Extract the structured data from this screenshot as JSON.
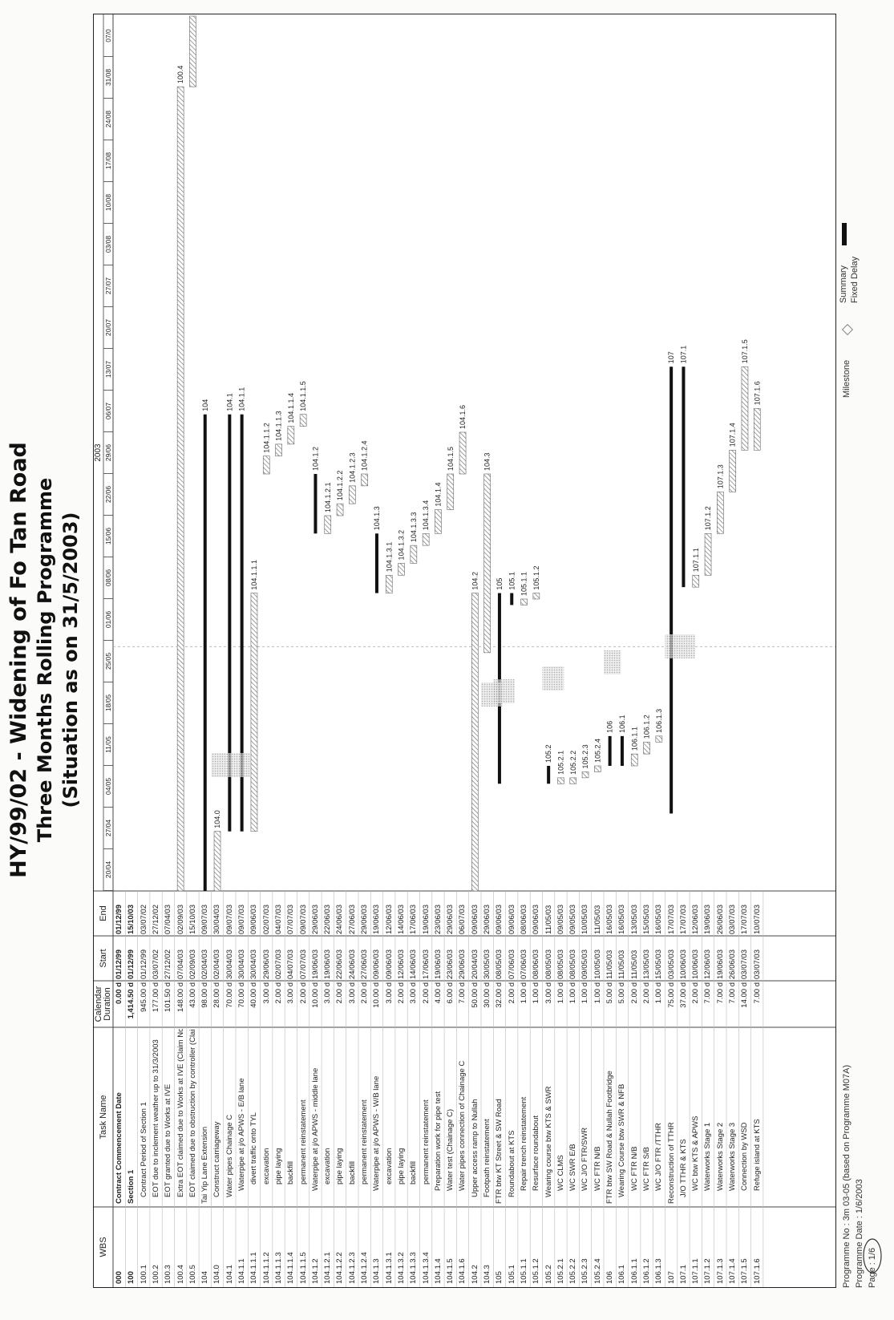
{
  "title": {
    "line1": "HY/99/02 - Widening of Fo Tan Road",
    "line2": "Three Months Rolling Programme",
    "line3": "(Situation as on 31/5/2003)"
  },
  "table": {
    "headers": {
      "wbs": "WBS",
      "task": "Task Name",
      "duration": "Calendar Duration",
      "start": "Start",
      "end": "End"
    },
    "rows": [
      {
        "wbs": "000",
        "name": "Contract Commencement Date",
        "dur": "0.00 d",
        "start": "01/12/99",
        "end": "01/12/99",
        "level": 0,
        "bold": true
      },
      {
        "wbs": "100",
        "name": "Section 1",
        "dur": "1,414.50 d",
        "start": "01/12/99",
        "end": "15/10/03",
        "level": 0,
        "bold": true
      },
      {
        "wbs": "100.1",
        "name": "Contract Period of Section 1",
        "dur": "945.00 d",
        "start": "01/12/99",
        "end": "03/07/02",
        "level": 1
      },
      {
        "wbs": "100.2",
        "name": "EOT due to inclement weather up to 31/3/2003",
        "dur": "177.00 d",
        "start": "03/07/02",
        "end": "27/12/02",
        "level": 1
      },
      {
        "wbs": "100.3",
        "name": "EOT granted due to Works at IVE",
        "dur": "101.50 d",
        "start": "27/12/02",
        "end": "07/04/03",
        "level": 1
      },
      {
        "wbs": "100.4",
        "name": "Extra EOT claimed due to Works at IVE (Claim No. 16)",
        "dur": "148.00 d",
        "start": "07/04/03",
        "end": "02/09/03",
        "level": 1
      },
      {
        "wbs": "100.5",
        "name": "EOT claimed due to obstruction by controller (Claim No.4",
        "dur": "43.00 d",
        "start": "02/09/03",
        "end": "15/10/03",
        "level": 1
      },
      {
        "wbs": "104",
        "name": "Tai Yip Lane Extension",
        "dur": "98.00 d",
        "start": "02/04/03",
        "end": "09/07/03",
        "level": 0
      },
      {
        "wbs": "104.0",
        "name": "Construct carriageway",
        "dur": "28.00 d",
        "start": "02/04/03",
        "end": "30/04/03",
        "level": 1
      },
      {
        "wbs": "104.1",
        "name": "Water pipes Chainage C",
        "dur": "70.00 d",
        "start": "30/04/03",
        "end": "09/07/03",
        "level": 1
      },
      {
        "wbs": "104.1.1",
        "name": "Waterpipe at j/o APWS - E/B lane",
        "dur": "70.00 d",
        "start": "30/04/03",
        "end": "09/07/03",
        "level": 2
      },
      {
        "wbs": "104.1.1.1",
        "name": "divert traffic onto TYL",
        "dur": "40.00 d",
        "start": "30/04/03",
        "end": "09/06/03",
        "level": 3
      },
      {
        "wbs": "104.1.1.2",
        "name": "excavation",
        "dur": "3.00 d",
        "start": "29/06/03",
        "end": "02/07/03",
        "level": 3
      },
      {
        "wbs": "104.1.1.3",
        "name": "pipe laying",
        "dur": "2.00 d",
        "start": "02/07/03",
        "end": "04/07/03",
        "level": 3
      },
      {
        "wbs": "104.1.1.4",
        "name": "backfill",
        "dur": "3.00 d",
        "start": "04/07/03",
        "end": "07/07/03",
        "level": 3
      },
      {
        "wbs": "104.1.1.5",
        "name": "permanent reinstatement",
        "dur": "2.00 d",
        "start": "07/07/03",
        "end": "09/07/03",
        "level": 3
      },
      {
        "wbs": "104.1.2",
        "name": "Waterpipe at j/o APWS - middle lane",
        "dur": "10.00 d",
        "start": "19/06/03",
        "end": "29/06/03",
        "level": 2
      },
      {
        "wbs": "104.1.2.1",
        "name": "excavation",
        "dur": "3.00 d",
        "start": "19/06/03",
        "end": "22/06/03",
        "level": 3
      },
      {
        "wbs": "104.1.2.2",
        "name": "pipe laying",
        "dur": "2.00 d",
        "start": "22/06/03",
        "end": "24/06/03",
        "level": 3
      },
      {
        "wbs": "104.1.2.3",
        "name": "backfill",
        "dur": "3.00 d",
        "start": "24/06/03",
        "end": "27/06/03",
        "level": 3
      },
      {
        "wbs": "104.1.2.4",
        "name": "permanent reinstatement",
        "dur": "2.00 d",
        "start": "27/06/03",
        "end": "29/06/03",
        "level": 3
      },
      {
        "wbs": "104.1.3",
        "name": "Waterpipe at j/o APWS - W/B lane",
        "dur": "10.00 d",
        "start": "09/06/03",
        "end": "19/06/03",
        "level": 2
      },
      {
        "wbs": "104.1.3.1",
        "name": "excavation",
        "dur": "3.00 d",
        "start": "09/06/03",
        "end": "12/06/03",
        "level": 3
      },
      {
        "wbs": "104.1.3.2",
        "name": "pipe laying",
        "dur": "2.00 d",
        "start": "12/06/03",
        "end": "14/06/03",
        "level": 3
      },
      {
        "wbs": "104.1.3.3",
        "name": "backfill",
        "dur": "3.00 d",
        "start": "14/06/03",
        "end": "17/06/03",
        "level": 3
      },
      {
        "wbs": "104.1.3.4",
        "name": "permanent reinstatement",
        "dur": "2.00 d",
        "start": "17/06/03",
        "end": "19/06/03",
        "level": 3
      },
      {
        "wbs": "104.1.4",
        "name": "Preparation work for pipe test",
        "dur": "4.00 d",
        "start": "19/06/03",
        "end": "23/06/03",
        "level": 2
      },
      {
        "wbs": "104.1.5",
        "name": "Water test (Chainage C)",
        "dur": "6.00 d",
        "start": "23/06/03",
        "end": "29/06/03",
        "level": 2
      },
      {
        "wbs": "104.1.6",
        "name": "Water pipes connection of Chainage C",
        "dur": "7.00 d",
        "start": "29/06/03",
        "end": "06/07/03",
        "level": 2
      },
      {
        "wbs": "104.2",
        "name": "Upper access ramp to Nullah",
        "dur": "50.00 d",
        "start": "20/04/03",
        "end": "09/06/03",
        "level": 1
      },
      {
        "wbs": "104.3",
        "name": "Footpath reinstatement",
        "dur": "30.00 d",
        "start": "30/05/03",
        "end": "29/06/03",
        "level": 1
      },
      {
        "wbs": "105",
        "name": "FTR btw KT Street & SW Road",
        "dur": "32.00 d",
        "start": "08/05/03",
        "end": "09/06/03",
        "level": 0
      },
      {
        "wbs": "105.1",
        "name": "Roundabout at KTS",
        "dur": "2.00 d",
        "start": "07/06/03",
        "end": "09/06/03",
        "level": 1
      },
      {
        "wbs": "105.1.1",
        "name": "Repair trench reinstatement",
        "dur": "1.00 d",
        "start": "07/06/03",
        "end": "08/06/03",
        "level": 2
      },
      {
        "wbs": "105.1.2",
        "name": "Resurface roundabout",
        "dur": "1.00 d",
        "start": "08/06/03",
        "end": "09/06/03",
        "level": 2
      },
      {
        "wbs": "105.2",
        "name": "Wearing course btw KTS & SWR",
        "dur": "3.00 d",
        "start": "08/05/03",
        "end": "11/05/03",
        "level": 1
      },
      {
        "wbs": "105.2.1",
        "name": "WC CLMS",
        "dur": "1.00 d",
        "start": "08/05/03",
        "end": "09/05/03",
        "level": 2
      },
      {
        "wbs": "105.2.2",
        "name": "WC SWR E/B",
        "dur": "1.00 d",
        "start": "08/05/03",
        "end": "09/05/03",
        "level": 2
      },
      {
        "wbs": "105.2.3",
        "name": "WC J/O FTR/SWR",
        "dur": "1.00 d",
        "start": "09/05/03",
        "end": "10/05/03",
        "level": 2
      },
      {
        "wbs": "105.2.4",
        "name": "WC FTR N/B",
        "dur": "1.00 d",
        "start": "10/05/03",
        "end": "11/05/03",
        "level": 2
      },
      {
        "wbs": "106",
        "name": "FTR btw SW Road & Nullah Footbridge",
        "dur": "5.00 d",
        "start": "11/05/03",
        "end": "16/05/03",
        "level": 0
      },
      {
        "wbs": "106.1",
        "name": "Wearing Course btw SWR & NFB",
        "dur": "5.00 d",
        "start": "11/05/03",
        "end": "16/05/03",
        "level": 1
      },
      {
        "wbs": "106.1.1",
        "name": "WC FTR N/B",
        "dur": "2.00 d",
        "start": "11/05/03",
        "end": "13/05/03",
        "level": 2
      },
      {
        "wbs": "106.1.2",
        "name": "WC FTR S/B",
        "dur": "2.00 d",
        "start": "13/05/03",
        "end": "15/05/03",
        "level": 2
      },
      {
        "wbs": "106.1.3",
        "name": "WC J/O FTR /TTHR",
        "dur": "1.00 d",
        "start": "15/05/03",
        "end": "16/05/03",
        "level": 2
      },
      {
        "wbs": "107",
        "name": "Reconstruction of TTHR",
        "dur": "75.00 d",
        "start": "03/05/03",
        "end": "17/07/03",
        "level": 0
      },
      {
        "wbs": "107.1",
        "name": "J/O TTHR & KTS",
        "dur": "37.00 d",
        "start": "10/06/03",
        "end": "17/07/03",
        "level": 1
      },
      {
        "wbs": "107.1.1",
        "name": "WC btw KTS & APWS",
        "dur": "2.00 d",
        "start": "10/06/03",
        "end": "12/06/03",
        "level": 2
      },
      {
        "wbs": "107.1.2",
        "name": "Waterworks Stage 1",
        "dur": "7.00 d",
        "start": "12/06/03",
        "end": "19/06/03",
        "level": 2
      },
      {
        "wbs": "107.1.3",
        "name": "Waterworks Stage 2",
        "dur": "7.00 d",
        "start": "19/06/03",
        "end": "26/06/03",
        "level": 2
      },
      {
        "wbs": "107.1.4",
        "name": "Waterworks Stage 3",
        "dur": "7.00 d",
        "start": "26/06/03",
        "end": "03/07/03",
        "level": 2
      },
      {
        "wbs": "107.1.5",
        "name": "Connection by WSD",
        "dur": "14.00 d",
        "start": "03/07/03",
        "end": "17/07/03",
        "level": 2
      },
      {
        "wbs": "107.1.6",
        "name": "Refuge island at KTS",
        "dur": "7.00 d",
        "start": "03/07/03",
        "end": "10/07/03",
        "level": 2
      }
    ]
  },
  "timeline": {
    "year": "2003",
    "weeks": [
      "20/04",
      "27/04",
      "04/05",
      "11/05",
      "18/05",
      "25/05",
      "01/06",
      "08/06",
      "15/06",
      "22/06",
      "29/06",
      "06/07",
      "13/07",
      "20/07",
      "27/07",
      "03/08",
      "10/08",
      "17/08",
      "24/08",
      "31/08",
      "07/0"
    ]
  },
  "bar_labels": [
    "104.0",
    "104",
    "104.1",
    "104.1.1",
    "104.1.1.1",
    "104.1.1.2",
    "104.1.1.3",
    "104.1.1.4",
    "104.1.1.5",
    "104.1.2",
    "104.1.2.1",
    "104.1.2.2",
    "104.1.2.3",
    "104.1.2.4",
    "104.1.3",
    "104.1.3.1",
    "104.1.3.2",
    "104.1.3.3",
    "104.1.3.4",
    "104.1.4",
    "104.1.5",
    "104.1.6",
    "104.2",
    "104.3",
    "105",
    "105.1",
    "105.1.1",
    "105.1.2",
    "105.2",
    "105.2.1",
    "105.2.2",
    "105.2.3",
    "105.2.4",
    "106",
    "106.1",
    "106.1.1",
    "106.1.2",
    "106.1.3",
    "107",
    "107.1",
    "107.1.1",
    "107.1.2",
    "107.1.3",
    "107.1.4",
    "107.1.5",
    "107.1.6",
    "100.4"
  ],
  "footer": {
    "programme_no": "Programme No : 3m 03-05 (based on Programme M07A)",
    "programme_date": "Programme Date : 1/6/2003",
    "page": "Page : 1/6"
  },
  "legend": {
    "milestone": "Milestone",
    "summary": "Summary",
    "fixed_delay": "Fixed Delay"
  },
  "colors": {
    "summary_bar": "#111111",
    "task_hatch": "#9a9a9a",
    "progress": "#555555"
  }
}
